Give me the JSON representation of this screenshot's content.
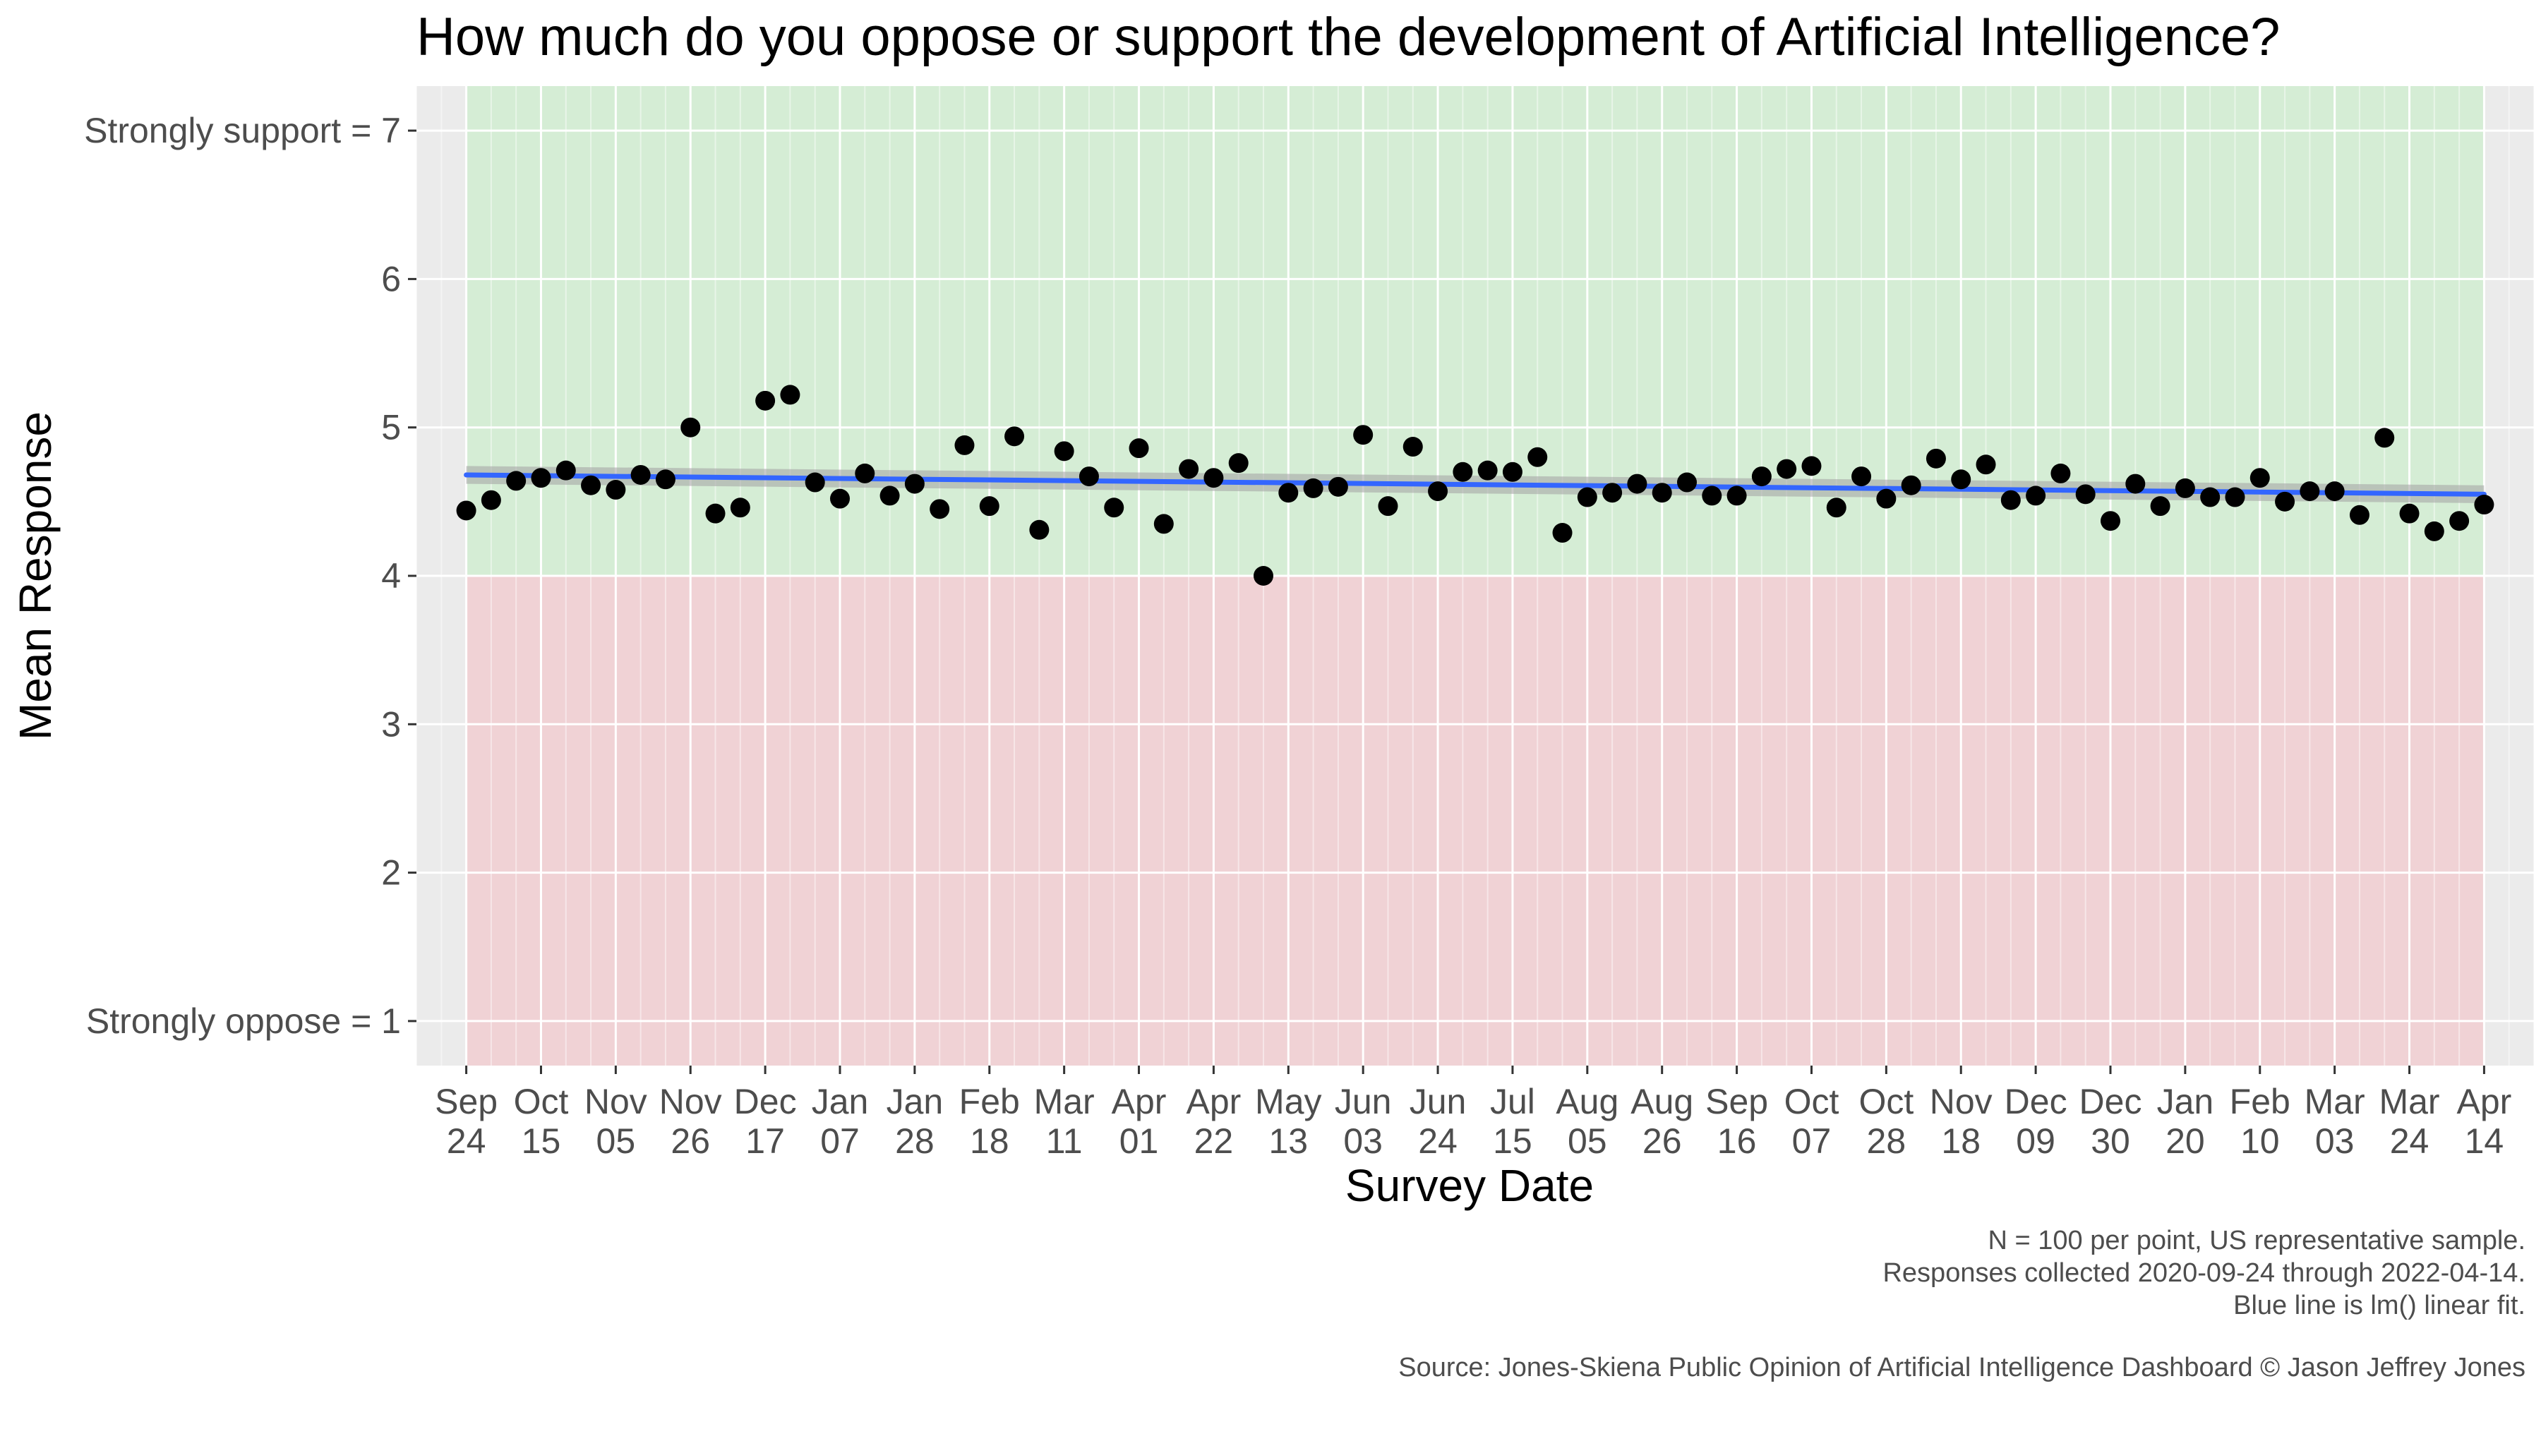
{
  "chart_data": {
    "type": "scatter",
    "title": "How much do you oppose or support the development of Artificial Intelligence?",
    "xlabel": "Survey Date",
    "ylabel": "Mean Response",
    "ylim": [
      0.7,
      7.3
    ],
    "xlim": [
      "2020-09-10",
      "2022-04-28"
    ],
    "y_ticks": [
      {
        "value": 1,
        "label": "Strongly oppose = 1"
      },
      {
        "value": 2,
        "label": "2"
      },
      {
        "value": 3,
        "label": "3"
      },
      {
        "value": 4,
        "label": "4"
      },
      {
        "value": 5,
        "label": "5"
      },
      {
        "value": 6,
        "label": "6"
      },
      {
        "value": 7,
        "label": "Strongly support = 7"
      }
    ],
    "x_ticks": [
      {
        "date": "2020-09-24",
        "label": [
          "Sep",
          "24"
        ]
      },
      {
        "date": "2020-10-15",
        "label": [
          "Oct",
          "15"
        ]
      },
      {
        "date": "2020-11-05",
        "label": [
          "Nov",
          "05"
        ]
      },
      {
        "date": "2020-11-26",
        "label": [
          "Nov",
          "26"
        ]
      },
      {
        "date": "2020-12-17",
        "label": [
          "Dec",
          "17"
        ]
      },
      {
        "date": "2021-01-07",
        "label": [
          "Jan",
          "07"
        ]
      },
      {
        "date": "2021-01-28",
        "label": [
          "Jan",
          "28"
        ]
      },
      {
        "date": "2021-02-18",
        "label": [
          "Feb",
          "18"
        ]
      },
      {
        "date": "2021-03-11",
        "label": [
          "Mar",
          "11"
        ]
      },
      {
        "date": "2021-04-01",
        "label": [
          "Apr",
          "01"
        ]
      },
      {
        "date": "2021-04-22",
        "label": [
          "Apr",
          "22"
        ]
      },
      {
        "date": "2021-05-13",
        "label": [
          "May",
          "13"
        ]
      },
      {
        "date": "2021-06-03",
        "label": [
          "Jun",
          "03"
        ]
      },
      {
        "date": "2021-06-24",
        "label": [
          "Jun",
          "24"
        ]
      },
      {
        "date": "2021-07-15",
        "label": [
          "Jul",
          "15"
        ]
      },
      {
        "date": "2021-08-05",
        "label": [
          "Aug",
          "05"
        ]
      },
      {
        "date": "2021-08-26",
        "label": [
          "Aug",
          "26"
        ]
      },
      {
        "date": "2021-09-16",
        "label": [
          "Sep",
          "16"
        ]
      },
      {
        "date": "2021-10-07",
        "label": [
          "Oct",
          "07"
        ]
      },
      {
        "date": "2021-10-28",
        "label": [
          "Oct",
          "28"
        ]
      },
      {
        "date": "2021-11-18",
        "label": [
          "Nov",
          "18"
        ]
      },
      {
        "date": "2021-12-09",
        "label": [
          "Dec",
          "09"
        ]
      },
      {
        "date": "2021-12-30",
        "label": [
          "Dec",
          "30"
        ]
      },
      {
        "date": "2022-01-20",
        "label": [
          "Jan",
          "20"
        ]
      },
      {
        "date": "2022-02-10",
        "label": [
          "Feb",
          "10"
        ]
      },
      {
        "date": "2022-03-03",
        "label": [
          "Mar",
          "03"
        ]
      },
      {
        "date": "2022-03-24",
        "label": [
          "Mar",
          "24"
        ]
      },
      {
        "date": "2022-04-14",
        "label": [
          "Apr",
          "14"
        ]
      }
    ],
    "grid": true,
    "background_bands": [
      {
        "from": 4,
        "to": 7.3,
        "color": "#d5edd5"
      },
      {
        "from": 0.7,
        "to": 4,
        "color": "#f0d2d5"
      }
    ],
    "panel_background": "#ebebeb",
    "band_date_range": [
      "2020-09-24",
      "2022-04-14"
    ],
    "point_color": "#000000",
    "fit_line_color": "#3366ff",
    "fit_band_color": "#a6a6a6",
    "points": [
      {
        "x": "2020-09-24",
        "y": 4.44
      },
      {
        "x": "2020-10-01",
        "y": 4.51
      },
      {
        "x": "2020-10-08",
        "y": 4.64
      },
      {
        "x": "2020-10-15",
        "y": 4.66
      },
      {
        "x": "2020-10-22",
        "y": 4.71
      },
      {
        "x": "2020-10-29",
        "y": 4.61
      },
      {
        "x": "2020-11-05",
        "y": 4.58
      },
      {
        "x": "2020-11-12",
        "y": 4.68
      },
      {
        "x": "2020-11-19",
        "y": 4.65
      },
      {
        "x": "2020-11-26",
        "y": 5.0
      },
      {
        "x": "2020-12-03",
        "y": 4.42
      },
      {
        "x": "2020-12-10",
        "y": 4.46
      },
      {
        "x": "2020-12-17",
        "y": 5.18
      },
      {
        "x": "2020-12-24",
        "y": 5.22
      },
      {
        "x": "2020-12-31",
        "y": 4.63
      },
      {
        "x": "2021-01-07",
        "y": 4.52
      },
      {
        "x": "2021-01-14",
        "y": 4.69
      },
      {
        "x": "2021-01-21",
        "y": 4.54
      },
      {
        "x": "2021-01-28",
        "y": 4.62
      },
      {
        "x": "2021-02-04",
        "y": 4.45
      },
      {
        "x": "2021-02-11",
        "y": 4.88
      },
      {
        "x": "2021-02-18",
        "y": 4.47
      },
      {
        "x": "2021-02-25",
        "y": 4.94
      },
      {
        "x": "2021-03-04",
        "y": 4.31
      },
      {
        "x": "2021-03-11",
        "y": 4.84
      },
      {
        "x": "2021-03-18",
        "y": 4.67
      },
      {
        "x": "2021-03-25",
        "y": 4.46
      },
      {
        "x": "2021-04-01",
        "y": 4.86
      },
      {
        "x": "2021-04-08",
        "y": 4.35
      },
      {
        "x": "2021-04-15",
        "y": 4.72
      },
      {
        "x": "2021-04-22",
        "y": 4.66
      },
      {
        "x": "2021-04-29",
        "y": 4.76
      },
      {
        "x": "2021-05-06",
        "y": 4.0
      },
      {
        "x": "2021-05-13",
        "y": 4.56
      },
      {
        "x": "2021-05-20",
        "y": 4.59
      },
      {
        "x": "2021-05-27",
        "y": 4.6
      },
      {
        "x": "2021-06-03",
        "y": 4.95
      },
      {
        "x": "2021-06-10",
        "y": 4.47
      },
      {
        "x": "2021-06-17",
        "y": 4.87
      },
      {
        "x": "2021-06-24",
        "y": 4.57
      },
      {
        "x": "2021-07-01",
        "y": 4.7
      },
      {
        "x": "2021-07-08",
        "y": 4.71
      },
      {
        "x": "2021-07-15",
        "y": 4.7
      },
      {
        "x": "2021-07-22",
        "y": 4.8
      },
      {
        "x": "2021-07-29",
        "y": 4.29
      },
      {
        "x": "2021-08-05",
        "y": 4.53
      },
      {
        "x": "2021-08-12",
        "y": 4.56
      },
      {
        "x": "2021-08-19",
        "y": 4.62
      },
      {
        "x": "2021-08-26",
        "y": 4.56
      },
      {
        "x": "2021-09-02",
        "y": 4.63
      },
      {
        "x": "2021-09-09",
        "y": 4.54
      },
      {
        "x": "2021-09-16",
        "y": 4.54
      },
      {
        "x": "2021-09-23",
        "y": 4.67
      },
      {
        "x": "2021-09-30",
        "y": 4.72
      },
      {
        "x": "2021-10-07",
        "y": 4.74
      },
      {
        "x": "2021-10-14",
        "y": 4.46
      },
      {
        "x": "2021-10-21",
        "y": 4.67
      },
      {
        "x": "2021-10-28",
        "y": 4.52
      },
      {
        "x": "2021-11-04",
        "y": 4.61
      },
      {
        "x": "2021-11-11",
        "y": 4.79
      },
      {
        "x": "2021-11-18",
        "y": 4.65
      },
      {
        "x": "2021-11-25",
        "y": 4.75
      },
      {
        "x": "2021-12-02",
        "y": 4.51
      },
      {
        "x": "2021-12-09",
        "y": 4.54
      },
      {
        "x": "2021-12-16",
        "y": 4.69
      },
      {
        "x": "2021-12-23",
        "y": 4.55
      },
      {
        "x": "2021-12-30",
        "y": 4.37
      },
      {
        "x": "2022-01-06",
        "y": 4.62
      },
      {
        "x": "2022-01-13",
        "y": 4.47
      },
      {
        "x": "2022-01-20",
        "y": 4.59
      },
      {
        "x": "2022-01-27",
        "y": 4.53
      },
      {
        "x": "2022-02-03",
        "y": 4.53
      },
      {
        "x": "2022-02-10",
        "y": 4.66
      },
      {
        "x": "2022-02-17",
        "y": 4.5
      },
      {
        "x": "2022-02-24",
        "y": 4.57
      },
      {
        "x": "2022-03-03",
        "y": 4.57
      },
      {
        "x": "2022-03-10",
        "y": 4.41
      },
      {
        "x": "2022-03-17",
        "y": 4.93
      },
      {
        "x": "2022-03-24",
        "y": 4.42
      },
      {
        "x": "2022-03-31",
        "y": 4.3
      },
      {
        "x": "2022-04-07",
        "y": 4.37
      },
      {
        "x": "2022-04-14",
        "y": 4.48
      }
    ],
    "fit_line": {
      "start": {
        "x": "2020-09-24",
        "y": 4.68
      },
      "end": {
        "x": "2022-04-14",
        "y": 4.55
      }
    },
    "fit_band": {
      "start": {
        "lo": 4.62,
        "hi": 4.74
      },
      "end": {
        "lo": 4.49,
        "hi": 4.61
      }
    },
    "captions": [
      "N = 100 per point, US representative sample.",
      "Responses collected 2020-09-24 through 2022-04-14.",
      "Blue line is lm() linear fit.",
      "Source: Jones-Skiena Public Opinion of Artificial Intelligence Dashboard © Jason Jeffrey Jones"
    ]
  }
}
